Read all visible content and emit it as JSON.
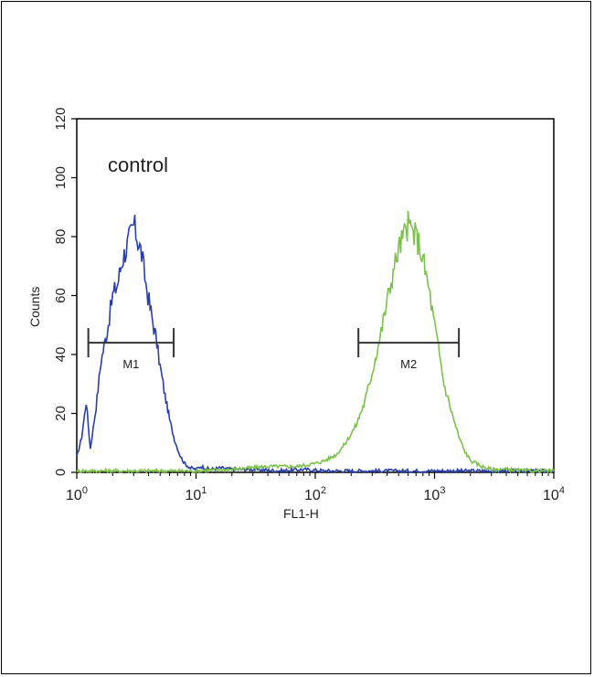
{
  "chart_data": {
    "type": "line",
    "annotation": "control",
    "xlabel": "FL1-H",
    "ylabel": "Counts",
    "x_scale": "log",
    "xlim": [
      1,
      10000
    ],
    "ylim": [
      0,
      120
    ],
    "x_ticks": [
      {
        "base": "10",
        "exp": "0"
      },
      {
        "base": "10",
        "exp": "1"
      },
      {
        "base": "10",
        "exp": "2"
      },
      {
        "base": "10",
        "exp": "3"
      },
      {
        "base": "10",
        "exp": "4"
      }
    ],
    "y_ticks": [
      "0",
      "20",
      "40",
      "60",
      "80",
      "100",
      "120"
    ],
    "series": [
      {
        "color": "#2a3fa8",
        "x": [
          1.0,
          1.1,
          1.2,
          1.3,
          1.45,
          1.6,
          1.8,
          2.0,
          2.2,
          2.4,
          2.6,
          2.8,
          3.0,
          3.2,
          3.5,
          3.8,
          4.2,
          4.6,
          5.0,
          5.5,
          6.0,
          6.6,
          7.3,
          8.0,
          9.0,
          10,
          11,
          13,
          16,
          20,
          30,
          50,
          80,
          120,
          200,
          500,
          1000,
          3000,
          10000
        ],
        "y": [
          5,
          12,
          24,
          8,
          22,
          38,
          48,
          60,
          64,
          72,
          76,
          80,
          84,
          80,
          74,
          64,
          54,
          46,
          36,
          26,
          18,
          11,
          6,
          3,
          1.5,
          1,
          2,
          1,
          1.5,
          1,
          1,
          0.5,
          1,
          0.5,
          0.5,
          0.5,
          0.5,
          0.5,
          0.5
        ]
      },
      {
        "color": "#7cc24a",
        "x": [
          1,
          3,
          10,
          20,
          40,
          70,
          100,
          120,
          150,
          180,
          220,
          260,
          300,
          350,
          400,
          450,
          500,
          550,
          600,
          650,
          700,
          750,
          800,
          900,
          1000,
          1100,
          1200,
          1400,
          1600,
          1800,
          2000,
          2500,
          3000,
          4000,
          6000,
          10000
        ],
        "y": [
          0.5,
          0.5,
          0.5,
          1,
          2,
          2,
          3,
          4,
          6,
          10,
          16,
          24,
          34,
          46,
          58,
          68,
          76,
          80,
          84,
          82,
          80,
          77,
          72,
          62,
          50,
          40,
          30,
          20,
          12,
          7,
          4,
          2,
          1,
          1,
          0.5,
          0.5
        ]
      }
    ],
    "gates": [
      {
        "label": "M1",
        "x1": 1.25,
        "x2": 6.5,
        "y": 44
      },
      {
        "label": "M2",
        "x1": 230,
        "x2": 1600,
        "y": 44
      }
    ]
  }
}
